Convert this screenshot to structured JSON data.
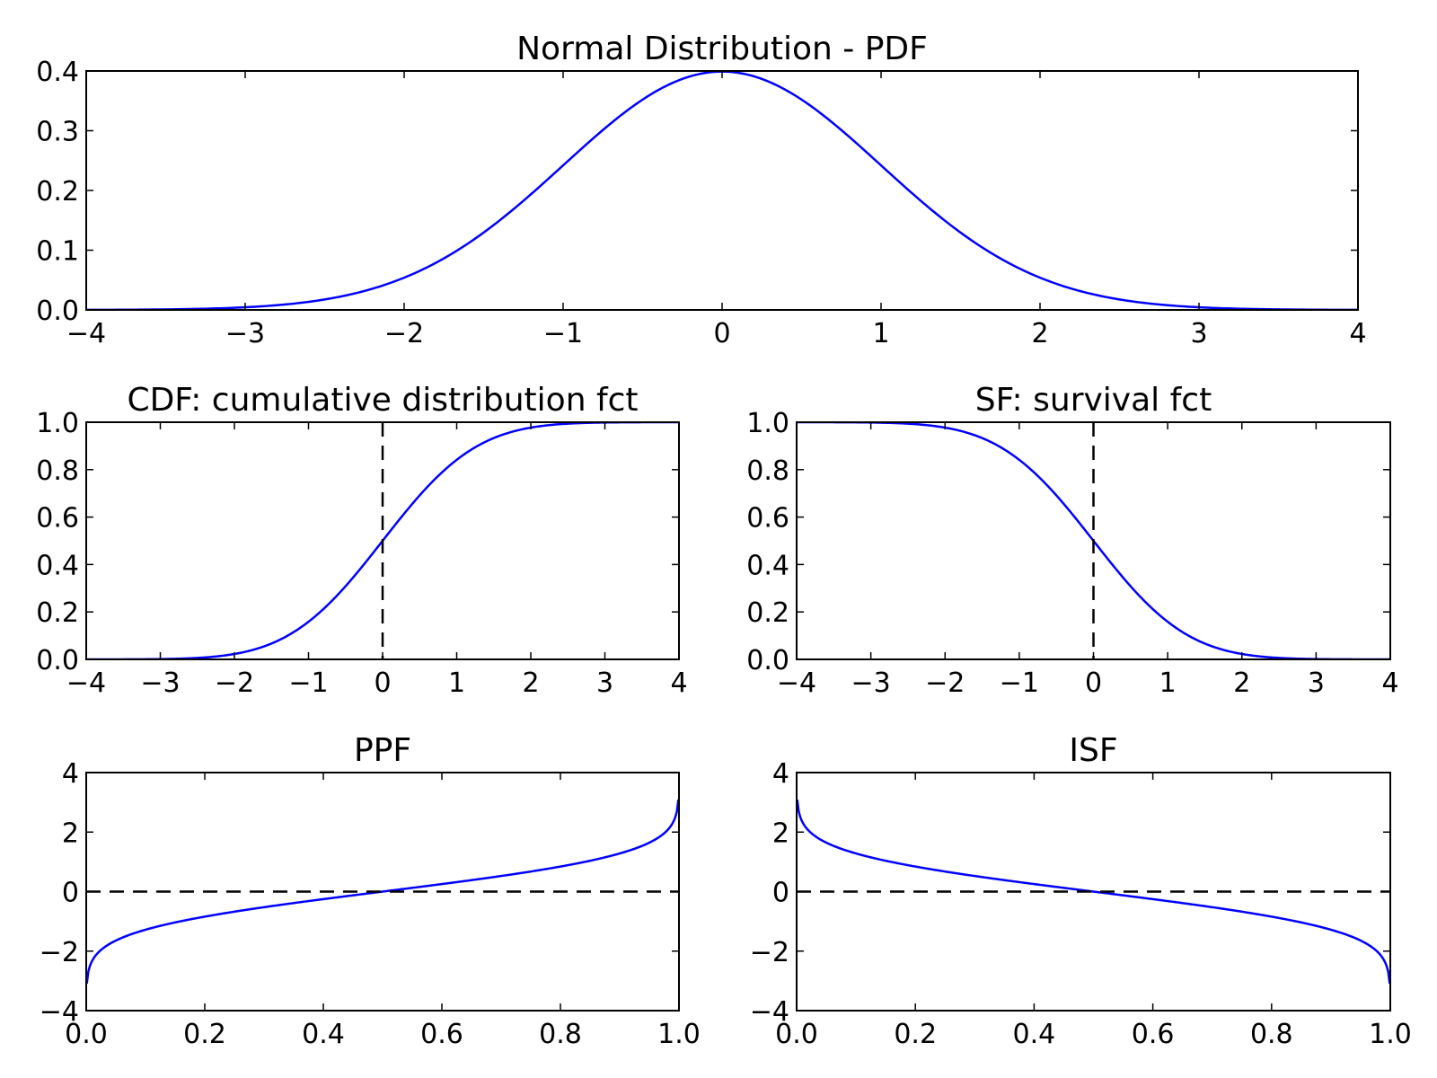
{
  "colors": {
    "curve": "#0000ff",
    "refline": "#000000"
  },
  "chart_data": [
    {
      "id": "pdf",
      "type": "line",
      "title": "Normal Distribution - PDF",
      "function": "norm_pdf",
      "xlim": [
        -4,
        4
      ],
      "ylim": [
        0,
        0.4
      ],
      "x": [
        -4,
        -3.5,
        -3,
        -2.5,
        -2,
        -1.5,
        -1,
        -0.5,
        0,
        0.5,
        1,
        1.5,
        2,
        2.5,
        3,
        3.5,
        4
      ],
      "y": [
        0.0001,
        0.0009,
        0.0044,
        0.0175,
        0.054,
        0.1295,
        0.242,
        0.3521,
        0.3989,
        0.3521,
        0.242,
        0.1295,
        0.054,
        0.0175,
        0.0044,
        0.0009,
        0.0001
      ],
      "xticks": [
        "−4",
        "−3",
        "−2",
        "−1",
        "0",
        "1",
        "2",
        "3",
        "4"
      ],
      "yticks": [
        "0.0",
        "0.1",
        "0.2",
        "0.3",
        "0.4"
      ],
      "refline": null
    },
    {
      "id": "cdf",
      "type": "line",
      "title": "CDF: cumulative distribution fct",
      "function": "norm_cdf",
      "xlim": [
        -4,
        4
      ],
      "ylim": [
        0,
        1
      ],
      "x": [
        -4,
        -3,
        -2,
        -1.5,
        -1,
        -0.5,
        0,
        0.5,
        1,
        1.5,
        2,
        3,
        4
      ],
      "y": [
        0.0,
        0.0013,
        0.0228,
        0.0668,
        0.1587,
        0.3085,
        0.5,
        0.6915,
        0.8413,
        0.9332,
        0.9772,
        0.9987,
        1.0
      ],
      "xticks": [
        "−4",
        "−3",
        "−2",
        "−1",
        "0",
        "1",
        "2",
        "3",
        "4"
      ],
      "yticks": [
        "0.0",
        "0.2",
        "0.4",
        "0.6",
        "0.8",
        "1.0"
      ],
      "refline": {
        "orientation": "vertical",
        "value": 0
      }
    },
    {
      "id": "sf",
      "type": "line",
      "title": "SF: survival fct",
      "function": "norm_sf",
      "xlim": [
        -4,
        4
      ],
      "ylim": [
        0,
        1
      ],
      "x": [
        -4,
        -3,
        -2,
        -1.5,
        -1,
        -0.5,
        0,
        0.5,
        1,
        1.5,
        2,
        3,
        4
      ],
      "y": [
        1.0,
        0.9987,
        0.9772,
        0.9332,
        0.8413,
        0.6915,
        0.5,
        0.3085,
        0.1587,
        0.0668,
        0.0228,
        0.0013,
        0.0
      ],
      "xticks": [
        "−4",
        "−3",
        "−2",
        "−1",
        "0",
        "1",
        "2",
        "3",
        "4"
      ],
      "yticks": [
        "0.0",
        "0.2",
        "0.4",
        "0.6",
        "0.8",
        "1.0"
      ],
      "refline": {
        "orientation": "vertical",
        "value": 0
      }
    },
    {
      "id": "ppf",
      "type": "line",
      "title": "PPF",
      "function": "norm_ppf",
      "xlim": [
        0,
        1
      ],
      "ylim": [
        -4,
        4
      ],
      "x": [
        0.001,
        0.01,
        0.05,
        0.1,
        0.2,
        0.3,
        0.4,
        0.5,
        0.6,
        0.7,
        0.8,
        0.9,
        0.95,
        0.99,
        0.999
      ],
      "y": [
        -3.09,
        -2.33,
        -1.64,
        -1.28,
        -0.84,
        -0.52,
        -0.25,
        0.0,
        0.25,
        0.52,
        0.84,
        1.28,
        1.64,
        2.33,
        3.09
      ],
      "xticks": [
        "0.0",
        "0.2",
        "0.4",
        "0.6",
        "0.8",
        "1.0"
      ],
      "yticks": [
        "−4",
        "−2",
        "0",
        "2",
        "4"
      ],
      "refline": {
        "orientation": "horizontal",
        "value": 0
      }
    },
    {
      "id": "isf",
      "type": "line",
      "title": "ISF",
      "function": "norm_isf",
      "xlim": [
        0,
        1
      ],
      "ylim": [
        -4,
        4
      ],
      "x": [
        0.001,
        0.01,
        0.05,
        0.1,
        0.2,
        0.3,
        0.4,
        0.5,
        0.6,
        0.7,
        0.8,
        0.9,
        0.95,
        0.99,
        0.999
      ],
      "y": [
        3.09,
        2.33,
        1.64,
        1.28,
        0.84,
        0.52,
        0.25,
        0.0,
        -0.25,
        -0.52,
        -0.84,
        -1.28,
        -1.64,
        -2.33,
        -3.09
      ],
      "xticks": [
        "0.0",
        "0.2",
        "0.4",
        "0.6",
        "0.8",
        "1.0"
      ],
      "yticks": [
        "−4",
        "−2",
        "0",
        "2",
        "4"
      ],
      "refline": {
        "orientation": "horizontal",
        "value": 0
      }
    }
  ]
}
